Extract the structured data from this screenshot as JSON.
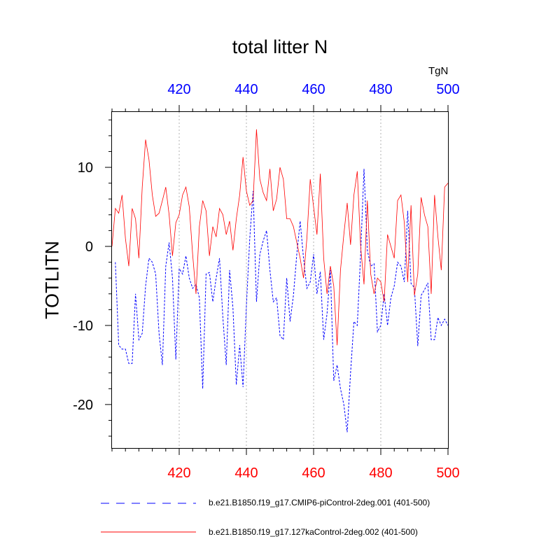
{
  "chart_data": {
    "type": "line",
    "title": "total litter N",
    "units": "TgN",
    "ylabel": "TOTLITN",
    "xlabel": "",
    "xlim": [
      400,
      500
    ],
    "ylim": [
      -25.5,
      17
    ],
    "x_ticks": [
      420,
      440,
      460,
      480,
      500
    ],
    "y_ticks": [
      -20,
      -10,
      0,
      10
    ],
    "y_minor_step": 2,
    "x_minor_step": 4,
    "grid": "vertical dotted at major x ticks",
    "legend_position": "bottom",
    "series": [
      {
        "name": "b.e21.B1850.f19_g17.CMIP6-piControl-2deg.001 (401-500)",
        "color": "#0000ff",
        "style": "dashed",
        "x": [
          401,
          402,
          403,
          404,
          405,
          406,
          407,
          408,
          409,
          410,
          411,
          412,
          413,
          414,
          415,
          416,
          417,
          418,
          419,
          420,
          421,
          422,
          423,
          424,
          425,
          426,
          427,
          428,
          429,
          430,
          431,
          432,
          433,
          434,
          435,
          436,
          437,
          438,
          439,
          440,
          441,
          442,
          443,
          444,
          445,
          446,
          447,
          448,
          449,
          450,
          451,
          452,
          453,
          454,
          455,
          456,
          457,
          458,
          459,
          460,
          461,
          462,
          463,
          464,
          465,
          466,
          467,
          468,
          469,
          470,
          471,
          472,
          473,
          474,
          475,
          476,
          477,
          478,
          479,
          480,
          481,
          482,
          483,
          484,
          485,
          486,
          487,
          488,
          489,
          490,
          491,
          492,
          493,
          494,
          495,
          496,
          497,
          498,
          499,
          500
        ],
        "values": [
          -2,
          -12.5,
          -13,
          -13,
          -14.8,
          -14.8,
          -6,
          -11.8,
          -11,
          -5,
          -1.5,
          -2,
          -3.5,
          -11,
          -15,
          -2.5,
          0.5,
          -4,
          -14.3,
          -2.8,
          -3.5,
          -1.2,
          -4,
          -5.3,
          -4.8,
          -6.5,
          -18,
          -3.5,
          -3.3,
          -7,
          -4,
          -1.5,
          -9,
          -15,
          -3,
          -7.8,
          -17.5,
          -12.5,
          -17.8,
          -7.5,
          1,
          7,
          -7,
          -1,
          0.7,
          2,
          -3,
          -7,
          -6.5,
          -11.3,
          -11.8,
          -4,
          -9.5,
          -6.2,
          -1,
          3.2,
          -1.5,
          -5.3,
          -4.5,
          -1,
          -6,
          -3.2,
          -11.8,
          -8.5,
          -3,
          -17,
          -15,
          -18,
          -20,
          -23.5,
          -16,
          -9.5,
          -10,
          -1,
          9.8,
          -0.5,
          -2.5,
          -2.2,
          -10.8,
          -10,
          -6,
          -10,
          -6.5,
          -5,
          -2,
          -2.5,
          -4.5,
          4.5,
          -4.7,
          -5.2,
          -12.6,
          -6.2,
          -5.5,
          -4.6,
          -11.8,
          -11.8,
          -9,
          -10,
          -9.2,
          -10
        ]
      },
      {
        "name": "b.e21.B1850.f19_g17.127kaControl-2deg.002 (401-500)",
        "color": "#ff0000",
        "style": "solid",
        "x": [
          400,
          401,
          402,
          403,
          404,
          405,
          406,
          407,
          408,
          409,
          410,
          411,
          412,
          413,
          414,
          415,
          416,
          417,
          418,
          419,
          420,
          421,
          422,
          423,
          424,
          425,
          426,
          427,
          428,
          429,
          430,
          431,
          432,
          433,
          434,
          435,
          436,
          437,
          438,
          439,
          440,
          441,
          442,
          443,
          444,
          445,
          446,
          447,
          448,
          449,
          450,
          451,
          452,
          453,
          454,
          455,
          456,
          457,
          458,
          459,
          460,
          461,
          462,
          463,
          464,
          465,
          466,
          467,
          468,
          469,
          470,
          471,
          472,
          473,
          474,
          475,
          476,
          477,
          478,
          479,
          480,
          481,
          482,
          483,
          484,
          485,
          486,
          487,
          488,
          489,
          490,
          491,
          492,
          493,
          494,
          495,
          496,
          497,
          498,
          499,
          500
        ],
        "values": [
          0,
          4.8,
          4.2,
          6.5,
          1,
          -2.5,
          4.8,
          3.5,
          -1.5,
          7.5,
          13.5,
          11,
          6.5,
          3.8,
          4.2,
          5.8,
          7.5,
          4,
          -1.2,
          3,
          4,
          6.5,
          7.5,
          5,
          -1,
          -6,
          2.5,
          5.8,
          4.5,
          -1.2,
          2.5,
          1.2,
          4.8,
          4,
          1.5,
          3.2,
          -0.5,
          3.5,
          6.5,
          11.3,
          7,
          5.2,
          5.8,
          14.8,
          8.5,
          6.8,
          5.8,
          9.8,
          4.5,
          6,
          10,
          8.5,
          3.5,
          3.5,
          2.5,
          0.5,
          -1.5,
          -4,
          1,
          8.5,
          5,
          1.5,
          9.2,
          -1.5,
          -6,
          -2.5,
          -5,
          -12.5,
          -3,
          1.5,
          5.5,
          0.2,
          6.5,
          9.5,
          0,
          -4.8,
          5.8,
          -3.5,
          -6,
          -4,
          -4.5,
          -7,
          1.5,
          0,
          -1.5,
          5.8,
          6.5,
          3,
          -4.5,
          5.2,
          -6.2,
          -3.5,
          6.2,
          4,
          2.5,
          -6,
          6.5,
          1.2,
          -3,
          7.5,
          8
        ]
      }
    ]
  }
}
